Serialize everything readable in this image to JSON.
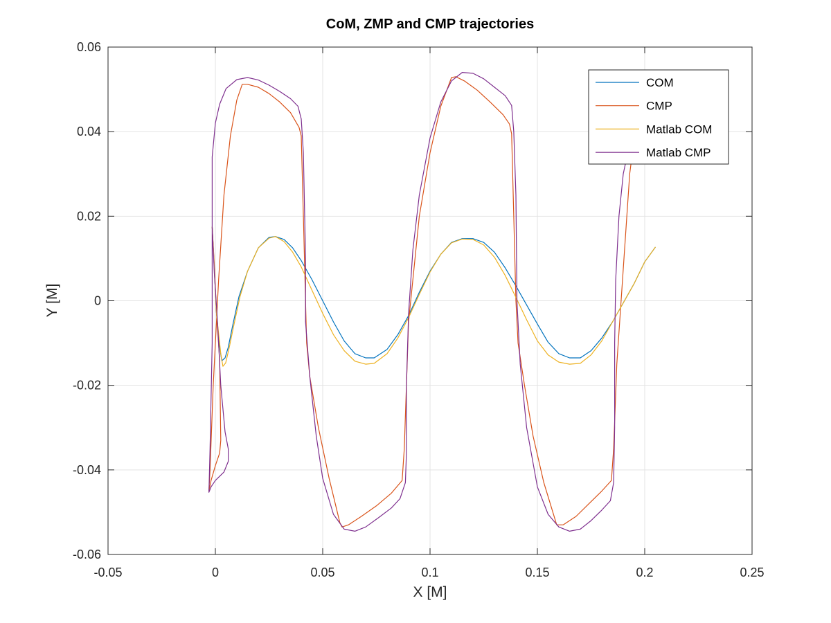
{
  "chart_data": {
    "type": "line",
    "title": "CoM, ZMP and CMP trajectories",
    "xlabel": "X [M]",
    "ylabel": "Y [M]",
    "xlim": [
      -0.05,
      0.25
    ],
    "ylim": [
      -0.06,
      0.06
    ],
    "xticks": [
      -0.05,
      0,
      0.05,
      0.1,
      0.15,
      0.2,
      0.25
    ],
    "yticks": [
      -0.06,
      -0.04,
      -0.02,
      0,
      0.02,
      0.04,
      0.06
    ],
    "xtick_labels": [
      "-0.05",
      "0",
      "0.05",
      "0.1",
      "0.15",
      "0.2",
      "0.25"
    ],
    "ytick_labels": [
      "-0.06",
      "-0.04",
      "-0.02",
      "0",
      "0.02",
      "0.04",
      "0.06"
    ],
    "grid": true,
    "legend_position": "top-right",
    "series": [
      {
        "name": "COM",
        "color": "#0072BD",
        "points": [
          [
            -0.0015,
            0.0175
          ],
          [
            -0.0005,
            0.0075
          ],
          [
            0.0005,
            -0.003
          ],
          [
            0.002,
            -0.011
          ],
          [
            0.003,
            -0.0142
          ],
          [
            0.0045,
            -0.0135
          ],
          [
            0.006,
            -0.011
          ],
          [
            0.008,
            -0.006
          ],
          [
            0.011,
            0.001
          ],
          [
            0.015,
            0.007
          ],
          [
            0.02,
            0.0125
          ],
          [
            0.025,
            0.015
          ],
          [
            0.028,
            0.0152
          ],
          [
            0.032,
            0.0145
          ],
          [
            0.036,
            0.0125
          ],
          [
            0.04,
            0.0095
          ],
          [
            0.045,
            0.005
          ],
          [
            0.05,
            0.0
          ],
          [
            0.055,
            -0.005
          ],
          [
            0.06,
            -0.0095
          ],
          [
            0.065,
            -0.0125
          ],
          [
            0.07,
            -0.0135
          ],
          [
            0.074,
            -0.0135
          ],
          [
            0.08,
            -0.0115
          ],
          [
            0.085,
            -0.008
          ],
          [
            0.09,
            -0.0035
          ],
          [
            0.095,
            0.002
          ],
          [
            0.1,
            0.007
          ],
          [
            0.105,
            0.011
          ],
          [
            0.11,
            0.0138
          ],
          [
            0.115,
            0.0147
          ],
          [
            0.12,
            0.0147
          ],
          [
            0.125,
            0.0138
          ],
          [
            0.13,
            0.0115
          ],
          [
            0.135,
            0.0078
          ],
          [
            0.14,
            0.0035
          ],
          [
            0.145,
            -0.001
          ],
          [
            0.15,
            -0.0055
          ],
          [
            0.155,
            -0.0098
          ],
          [
            0.16,
            -0.0125
          ],
          [
            0.165,
            -0.0135
          ],
          [
            0.17,
            -0.0135
          ],
          [
            0.175,
            -0.0118
          ],
          [
            0.18,
            -0.0088
          ],
          [
            0.185,
            -0.005
          ],
          [
            0.19,
            -0.0005
          ],
          [
            0.195,
            0.004
          ],
          [
            0.2,
            0.0092
          ],
          [
            0.205,
            0.0127
          ]
        ]
      },
      {
        "name": "CMP",
        "color": "#D95319",
        "points": [
          [
            -0.0015,
            0.0175
          ],
          [
            -0.0005,
            0.0085
          ],
          [
            0.0005,
            -0.003
          ],
          [
            0.002,
            -0.014
          ],
          [
            0.0025,
            -0.033
          ],
          [
            0.002,
            -0.036
          ],
          [
            0.0,
            -0.039
          ],
          [
            -0.002,
            -0.0425
          ],
          [
            -0.003,
            -0.045
          ],
          [
            -0.0025,
            -0.04
          ],
          [
            -0.001,
            -0.02
          ],
          [
            0.0015,
            0.005
          ],
          [
            0.004,
            0.025
          ],
          [
            0.007,
            0.039
          ],
          [
            0.01,
            0.0475
          ],
          [
            0.0125,
            0.0512
          ],
          [
            0.015,
            0.0512
          ],
          [
            0.02,
            0.0505
          ],
          [
            0.025,
            0.049
          ],
          [
            0.03,
            0.047
          ],
          [
            0.035,
            0.0445
          ],
          [
            0.039,
            0.041
          ],
          [
            0.04,
            0.039
          ],
          [
            0.041,
            0.02
          ],
          [
            0.042,
            0.0
          ],
          [
            0.0425,
            -0.01
          ],
          [
            0.044,
            -0.018
          ],
          [
            0.048,
            -0.03
          ],
          [
            0.053,
            -0.042
          ],
          [
            0.058,
            -0.0525
          ],
          [
            0.059,
            -0.0535
          ],
          [
            0.062,
            -0.053
          ],
          [
            0.068,
            -0.051
          ],
          [
            0.075,
            -0.0485
          ],
          [
            0.082,
            -0.0455
          ],
          [
            0.087,
            -0.0425
          ],
          [
            0.088,
            -0.035
          ],
          [
            0.089,
            -0.02
          ],
          [
            0.09,
            -0.005
          ],
          [
            0.092,
            0.005
          ],
          [
            0.095,
            0.02
          ],
          [
            0.1,
            0.035
          ],
          [
            0.105,
            0.046
          ],
          [
            0.11,
            0.0528
          ],
          [
            0.112,
            0.053
          ],
          [
            0.116,
            0.052
          ],
          [
            0.122,
            0.0498
          ],
          [
            0.128,
            0.047
          ],
          [
            0.134,
            0.044
          ],
          [
            0.137,
            0.0418
          ],
          [
            0.138,
            0.0395
          ],
          [
            0.139,
            0.02
          ],
          [
            0.14,
            0.0
          ],
          [
            0.141,
            -0.01
          ],
          [
            0.144,
            -0.02
          ],
          [
            0.148,
            -0.032
          ],
          [
            0.153,
            -0.043
          ],
          [
            0.159,
            -0.053
          ],
          [
            0.162,
            -0.053
          ],
          [
            0.168,
            -0.051
          ],
          [
            0.174,
            -0.048
          ],
          [
            0.18,
            -0.045
          ],
          [
            0.1845,
            -0.0425
          ],
          [
            0.1855,
            -0.035
          ],
          [
            0.187,
            -0.015
          ],
          [
            0.189,
            0.0
          ],
          [
            0.191,
            0.015
          ],
          [
            0.193,
            0.03
          ],
          [
            0.1945,
            0.036
          ]
        ]
      },
      {
        "name": "Matlab COM",
        "color": "#EDB120",
        "points": [
          [
            -0.0015,
            0.0175
          ],
          [
            -0.0005,
            0.0075
          ],
          [
            0.0005,
            -0.003
          ],
          [
            0.0025,
            -0.0125
          ],
          [
            0.0035,
            -0.0155
          ],
          [
            0.0048,
            -0.0147
          ],
          [
            0.0065,
            -0.011
          ],
          [
            0.0085,
            -0.006
          ],
          [
            0.0115,
            0.001
          ],
          [
            0.015,
            0.007
          ],
          [
            0.02,
            0.0125
          ],
          [
            0.025,
            0.0148
          ],
          [
            0.028,
            0.0152
          ],
          [
            0.032,
            0.014
          ],
          [
            0.036,
            0.0115
          ],
          [
            0.04,
            0.008
          ],
          [
            0.045,
            0.0025
          ],
          [
            0.05,
            -0.003
          ],
          [
            0.055,
            -0.008
          ],
          [
            0.06,
            -0.0118
          ],
          [
            0.065,
            -0.0143
          ],
          [
            0.07,
            -0.015
          ],
          [
            0.074,
            -0.0148
          ],
          [
            0.08,
            -0.0125
          ],
          [
            0.085,
            -0.0088
          ],
          [
            0.09,
            -0.004
          ],
          [
            0.095,
            0.0015
          ],
          [
            0.1,
            0.0068
          ],
          [
            0.105,
            0.011
          ],
          [
            0.11,
            0.0137
          ],
          [
            0.115,
            0.0146
          ],
          [
            0.12,
            0.0145
          ],
          [
            0.125,
            0.0132
          ],
          [
            0.13,
            0.0103
          ],
          [
            0.135,
            0.006
          ],
          [
            0.14,
            0.0008
          ],
          [
            0.145,
            -0.0045
          ],
          [
            0.15,
            -0.0095
          ],
          [
            0.155,
            -0.0128
          ],
          [
            0.16,
            -0.0145
          ],
          [
            0.165,
            -0.015
          ],
          [
            0.17,
            -0.0148
          ],
          [
            0.175,
            -0.0128
          ],
          [
            0.18,
            -0.0095
          ],
          [
            0.185,
            -0.005
          ],
          [
            0.19,
            -0.0005
          ],
          [
            0.195,
            0.004
          ],
          [
            0.2,
            0.0092
          ],
          [
            0.205,
            0.0127
          ]
        ]
      },
      {
        "name": "Matlab CMP",
        "color": "#7E2F8E",
        "points": [
          [
            -0.0015,
            0.0175
          ],
          [
            -0.0005,
            0.0065
          ],
          [
            0.001,
            -0.005
          ],
          [
            0.0025,
            -0.02
          ],
          [
            0.0045,
            -0.031
          ],
          [
            0.006,
            -0.035
          ],
          [
            0.006,
            -0.038
          ],
          [
            0.004,
            -0.0405
          ],
          [
            0.0,
            -0.0425
          ],
          [
            -0.002,
            -0.044
          ],
          [
            -0.003,
            -0.0453
          ],
          [
            -0.0025,
            -0.035
          ],
          [
            -0.0015,
            -0.01
          ],
          [
            -0.0015,
            0.015
          ],
          [
            -0.0015,
            0.034
          ],
          [
            0.0,
            0.042
          ],
          [
            0.002,
            0.0465
          ],
          [
            0.005,
            0.0502
          ],
          [
            0.01,
            0.0523
          ],
          [
            0.015,
            0.0528
          ],
          [
            0.02,
            0.0522
          ],
          [
            0.025,
            0.051
          ],
          [
            0.03,
            0.0495
          ],
          [
            0.035,
            0.0478
          ],
          [
            0.0385,
            0.046
          ],
          [
            0.04,
            0.043
          ],
          [
            0.041,
            0.035
          ],
          [
            0.042,
            0.01
          ],
          [
            0.042,
            -0.005
          ],
          [
            0.044,
            -0.018
          ],
          [
            0.047,
            -0.032
          ],
          [
            0.05,
            -0.042
          ],
          [
            0.055,
            -0.0505
          ],
          [
            0.06,
            -0.054
          ],
          [
            0.065,
            -0.0545
          ],
          [
            0.07,
            -0.0535
          ],
          [
            0.076,
            -0.0513
          ],
          [
            0.082,
            -0.049
          ],
          [
            0.086,
            -0.0468
          ],
          [
            0.0885,
            -0.043
          ],
          [
            0.089,
            -0.036
          ],
          [
            0.089,
            -0.02
          ],
          [
            0.09,
            -0.003
          ],
          [
            0.092,
            0.012
          ],
          [
            0.095,
            0.025
          ],
          [
            0.1,
            0.0385
          ],
          [
            0.105,
            0.047
          ],
          [
            0.11,
            0.052
          ],
          [
            0.115,
            0.054
          ],
          [
            0.12,
            0.0538
          ],
          [
            0.125,
            0.0525
          ],
          [
            0.13,
            0.0505
          ],
          [
            0.135,
            0.0485
          ],
          [
            0.138,
            0.0462
          ],
          [
            0.139,
            0.04
          ],
          [
            0.14,
            0.025
          ],
          [
            0.1405,
            0.0
          ],
          [
            0.142,
            -0.015
          ],
          [
            0.145,
            -0.03
          ],
          [
            0.15,
            -0.044
          ],
          [
            0.155,
            -0.0505
          ],
          [
            0.16,
            -0.0535
          ],
          [
            0.165,
            -0.0545
          ],
          [
            0.17,
            -0.054
          ],
          [
            0.175,
            -0.052
          ],
          [
            0.18,
            -0.0495
          ],
          [
            0.184,
            -0.0473
          ],
          [
            0.1855,
            -0.043
          ],
          [
            0.186,
            -0.03
          ],
          [
            0.186,
            -0.01
          ],
          [
            0.1865,
            0.005
          ],
          [
            0.188,
            0.02
          ],
          [
            0.19,
            0.03
          ],
          [
            0.1925,
            0.036
          ]
        ]
      }
    ]
  }
}
